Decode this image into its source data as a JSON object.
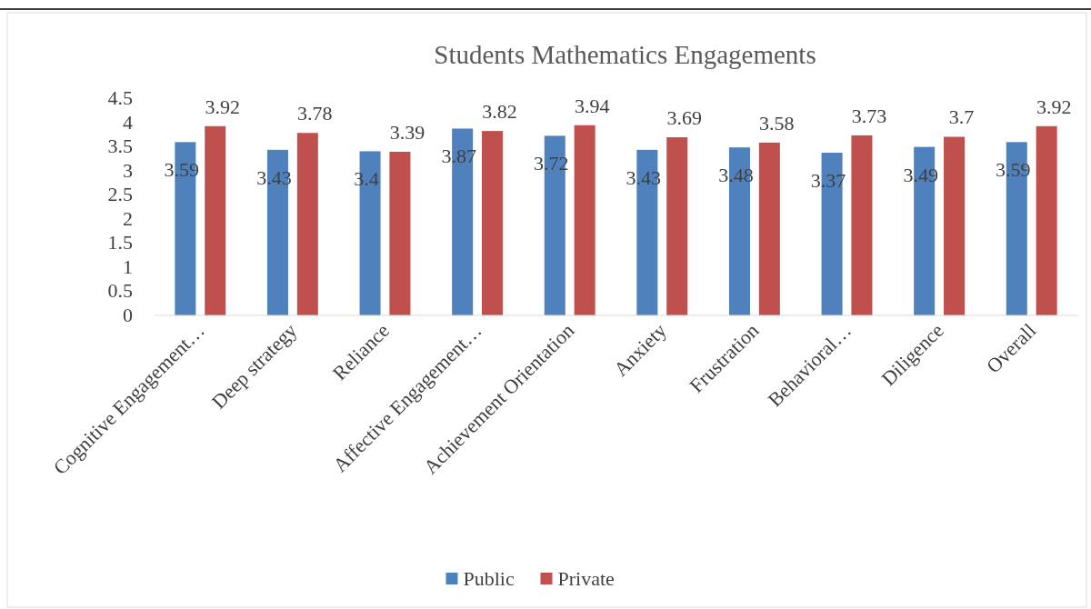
{
  "chart_data": {
    "type": "bar",
    "title": "Students Mathematics Engagements",
    "categories": [
      "Cognitive Engagement…",
      "Deep strategy",
      "Reliance",
      "Affective Engagement…",
      "Achievement Orientation",
      "Anxiety",
      "Frustration",
      "Behavioral…",
      "Diligence",
      "Overall"
    ],
    "series": [
      {
        "name": "Public",
        "color": "#4f81bd",
        "values": [
          3.59,
          3.43,
          3.4,
          3.87,
          3.72,
          3.43,
          3.48,
          3.37,
          3.49,
          3.59
        ]
      },
      {
        "name": "Private",
        "color": "#c0504d",
        "values": [
          3.92,
          3.78,
          3.39,
          3.82,
          3.94,
          3.69,
          3.58,
          3.73,
          3.7,
          3.92
        ]
      }
    ],
    "ylim": [
      0,
      4.5
    ],
    "yticks": [
      0,
      0.5,
      1,
      1.5,
      2,
      2.5,
      3,
      3.5,
      4,
      4.5
    ],
    "data_labels": true,
    "grid": false,
    "legend": "bottom"
  }
}
